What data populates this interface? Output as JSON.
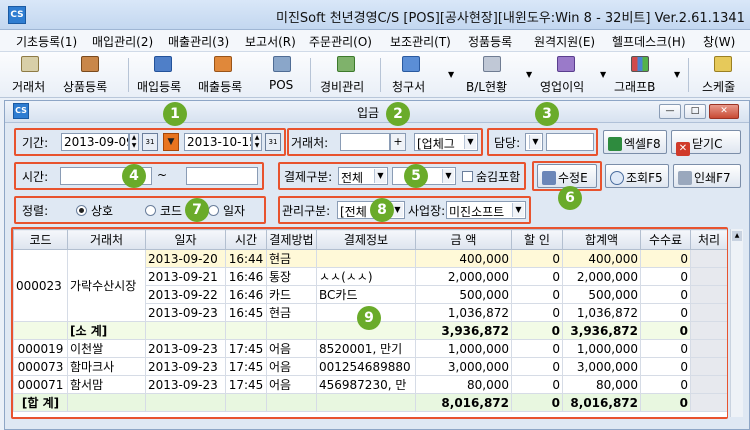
{
  "window": {
    "title": "미진Soft 천년경영C/S [POS][공사현장][내윈도우:Win 8 - 32비트] Ver.2.61.1341",
    "app_icon": "CS"
  },
  "menu": [
    "기초등록(1)",
    "매입관리(2)",
    "매출관리(3)",
    "보고서(R)",
    "주문관리(O)",
    "보조관리(T)",
    "정품등록",
    "원격지원(E)",
    "헬프데스크(H)",
    "창(W)"
  ],
  "toolbar": [
    "거래처",
    "상품등록",
    "매입등록",
    "매출등록",
    "POS",
    "경비관리",
    "청구서",
    "B/L현황",
    "영업이익",
    "그래프B",
    "스케줄"
  ],
  "inner": {
    "icon": "CS",
    "title": "입금",
    "min": "—",
    "max": "□",
    "close": "✕"
  },
  "filters": {
    "period_label": "기간:",
    "date_from": "2013-09-09",
    "date_to": "2013-10-15",
    "cal_label": "31",
    "client_label": "거래처:",
    "client_value": "",
    "client_btn": "+",
    "client_type": "[업체그",
    "manager_label": "담당:",
    "manager_value": "",
    "time_label": "시간:",
    "time_from": "",
    "time_sep": "~",
    "time_to": "",
    "pay_label": "결제구분:",
    "pay_value": "전체",
    "pay_sub": "",
    "hide_label": "숨김포함",
    "sort_label": "정렬:",
    "sort_options": [
      "상호",
      "코드",
      "일자"
    ],
    "mgmt_label": "관리구분:",
    "mgmt_value": "[전체",
    "site_label": "사업장:",
    "site_value": "미진소프트"
  },
  "buttons": {
    "excel": "엑셀F8",
    "close": "닫기C",
    "edit": "수정E",
    "search": "조회F5",
    "print": "인쇄F7"
  },
  "badges": [
    "1",
    "2",
    "3",
    "4",
    "5",
    "6",
    "7",
    "8",
    "9"
  ],
  "grid": {
    "headers": [
      "코드",
      "거래처",
      "일자",
      "시간",
      "결제방법",
      "결제정보",
      "금 액",
      "할 인",
      "합계액",
      "수수료",
      "처리"
    ],
    "rows": [
      {
        "type": "yellow",
        "cells": [
          "",
          "",
          "2013-09-20",
          "16:44",
          "현금",
          "",
          "400,000",
          "0",
          "400,000",
          "0",
          ""
        ]
      },
      {
        "type": "normal",
        "cells": [
          "",
          "",
          "2013-09-21",
          "16:46",
          "통장",
          "ㅅㅅ(ㅅㅅ)",
          "2,000,000",
          "0",
          "2,000,000",
          "0",
          ""
        ]
      },
      {
        "type": "normal",
        "cells": [
          "",
          "",
          "2013-09-22",
          "16:46",
          "카드",
          "BC카드",
          "500,000",
          "0",
          "500,000",
          "0",
          ""
        ]
      },
      {
        "type": "normal",
        "cells": [
          "",
          "",
          "2013-09-23",
          "16:45",
          "현금",
          "",
          "1,036,872",
          "0",
          "1,036,872",
          "0",
          ""
        ]
      },
      {
        "type": "sub",
        "cells": [
          "",
          "[소 계]",
          "",
          "",
          "",
          "",
          "3,936,872",
          "0",
          "3,936,872",
          "0",
          ""
        ]
      },
      {
        "type": "normal",
        "cells": [
          "000019",
          "이천쌀",
          "2013-09-23",
          "17:45",
          "어음",
          "8520001, 만기",
          "1,000,000",
          "0",
          "1,000,000",
          "0",
          ""
        ]
      },
      {
        "type": "normal",
        "cells": [
          "000073",
          "함마크사",
          "2013-09-23",
          "17:45",
          "어음",
          "001254689880",
          "3,000,000",
          "0",
          "3,000,000",
          "0",
          ""
        ]
      },
      {
        "type": "normal",
        "cells": [
          "000071",
          "함서맘",
          "2013-09-23",
          "17:45",
          "어음",
          "456987230, 만",
          "80,000",
          "0",
          "80,000",
          "0",
          ""
        ]
      },
      {
        "type": "total",
        "cells": [
          "[합 계]",
          "",
          "",
          "",
          "",
          "",
          "8,016,872",
          "0",
          "8,016,872",
          "0",
          ""
        ]
      }
    ],
    "group_code": "000023",
    "group_name": "가락수산시장"
  },
  "colors": {
    "highlight_border": "#e8532e",
    "badge": "#6aab2a"
  }
}
